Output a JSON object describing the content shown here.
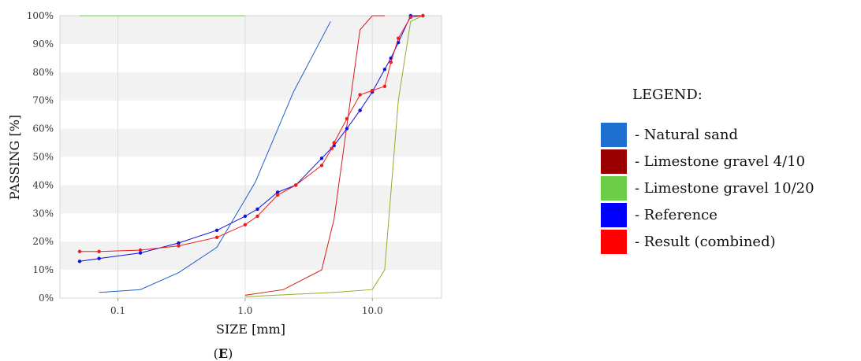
{
  "chart_data": {
    "type": "line",
    "x_scale": "log",
    "xlim": [
      0.035,
      35
    ],
    "ylim": [
      0,
      100
    ],
    "xlabel": "SIZE [mm]",
    "ylabel": "PASSING [%]",
    "panel_label_open": "(",
    "panel_label_letter": "E",
    "panel_label_close": ")",
    "x_ticks": [
      {
        "value": 0.1,
        "label": "0.1"
      },
      {
        "value": 1.0,
        "label": "1.0"
      },
      {
        "value": 10.0,
        "label": "10.0"
      }
    ],
    "y_ticks": [
      {
        "value": 0,
        "label": "0%"
      },
      {
        "value": 10,
        "label": "10%"
      },
      {
        "value": 20,
        "label": "20%"
      },
      {
        "value": 30,
        "label": "30%"
      },
      {
        "value": 40,
        "label": "40%"
      },
      {
        "value": 50,
        "label": "50%"
      },
      {
        "value": 60,
        "label": "60%"
      },
      {
        "value": 70,
        "label": "70%"
      },
      {
        "value": 80,
        "label": "80%"
      },
      {
        "value": 90,
        "label": "90%"
      },
      {
        "value": 100,
        "label": "100%"
      }
    ],
    "banding": "alternating grey and white horizontal bands every 10%",
    "legend_title": "LEGEND:",
    "legend_position": "right",
    "series": [
      {
        "name": "- Natural sand",
        "color": "#1f5fc8",
        "swatch": "#1e6fd0",
        "markers": false,
        "x": [
          0.071,
          0.15,
          0.3,
          0.6,
          1.2,
          2.4,
          4.7
        ],
        "y": [
          2,
          3,
          9,
          18,
          41,
          73,
          98
        ]
      },
      {
        "name": "- Limestone gravel 4/10",
        "color": "#d21e1e",
        "swatch": "#9b0000",
        "markers": false,
        "x": [
          1.0,
          2.0,
          4.0,
          5.0,
          8.0,
          10.0,
          12.5
        ],
        "y": [
          1,
          3,
          10,
          28,
          95,
          100,
          100
        ]
      },
      {
        "name": "- Limestone gravel 10/20",
        "color": "#8ab02c",
        "swatch": "#6cce46",
        "markers": false,
        "x": [
          1.0,
          5.0,
          10.0,
          12.5,
          16.0,
          20.0,
          25.0
        ],
        "y": [
          0.5,
          2,
          3,
          10,
          70,
          98,
          100
        ]
      },
      {
        "name": "- Reference",
        "color": "#1010e0",
        "swatch": "#0000ff",
        "markers": true,
        "x": [
          0.05,
          0.071,
          0.15,
          0.3,
          0.6,
          1.0,
          1.25,
          1.8,
          2.5,
          4.0,
          5.0,
          6.3,
          8.0,
          10.0,
          12.5,
          14.0,
          16.0,
          20.0,
          25.0
        ],
        "y": [
          13,
          14,
          16,
          19.5,
          24,
          29,
          31.5,
          37.5,
          40,
          49.5,
          54,
          60,
          66.5,
          73,
          81,
          85,
          90.5,
          100,
          100
        ]
      },
      {
        "name": "- Result (combined)",
        "color": "#ee1c1c",
        "swatch": "#ff0000",
        "markers": true,
        "x": [
          0.05,
          0.071,
          0.15,
          0.3,
          0.6,
          1.0,
          1.25,
          1.8,
          2.5,
          4.0,
          4.8,
          5.0,
          6.3,
          8.0,
          10.0,
          12.5,
          14.0,
          16.0,
          20.0,
          25.0
        ],
        "y": [
          16.5,
          16.5,
          17,
          18.5,
          21.5,
          26,
          29,
          36.5,
          40,
          47,
          53,
          55,
          63.5,
          72,
          73.5,
          75,
          83.5,
          92,
          99.5,
          100
        ]
      }
    ],
    "top_flat_line": {
      "color": "#6cce46",
      "x": [
        0.05,
        1.0
      ],
      "y": [
        100,
        100
      ]
    }
  }
}
